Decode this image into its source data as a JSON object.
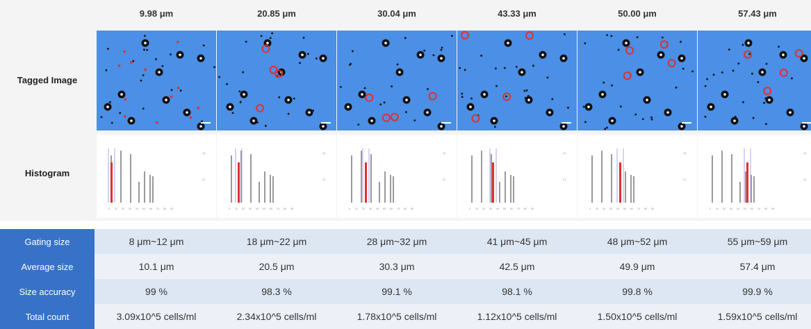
{
  "columns": [
    {
      "header": "9.98 μm",
      "gating": "8 μm~12 μm",
      "average": "10.1 μm",
      "accuracy": "99 %",
      "count": "3.09x10^5 cells/ml"
    },
    {
      "header": "20.85 μm",
      "gating": "18 μm~22 μm",
      "average": "20.5 μm",
      "accuracy": "98.3 %",
      "count": "2.34x10^5 cells/ml"
    },
    {
      "header": "30.04 μm",
      "gating": "28 μm~32 μm",
      "average": "30.3 μm",
      "accuracy": "99.1 %",
      "count": "1.78x10^5 cells/ml"
    },
    {
      "header": "43.33 μm",
      "gating": "41 μm~45 μm",
      "average": "42.5 μm",
      "accuracy": "98.1 %",
      "count": "1.12x10^5 cells/ml"
    },
    {
      "header": "50.00 μm",
      "gating": "48 μm~52 μm",
      "average": "49.9 μm",
      "accuracy": "99.8 %",
      "count": "1.50x10^5 cells/ml"
    },
    {
      "header": "57.43 μm",
      "gating": "55 μm~59 μm",
      "average": "57.4 μm",
      "accuracy": "99.9 %",
      "count": "1.59x10^5 cells/ml"
    }
  ],
  "labels": {
    "tagged_image": "Tagged Image",
    "histogram": "Histogram",
    "gating_size": "Gating size",
    "average_size": "Average size",
    "size_accuracy": "Size accuracy",
    "total_count": "Total count"
  },
  "histogram_axis": {
    "x_ticks": [
      "0",
      "10",
      "20",
      "30",
      "40",
      "50",
      "60",
      "70",
      "80",
      "90"
    ],
    "y_ticks": [
      "43",
      "21"
    ]
  },
  "colors": {
    "header_bg": "#3772c8",
    "row_light": "#dde6f3",
    "row_lighter": "#edf1f7",
    "image_bg": "#4b8fe6",
    "tag_red": "#e03030"
  }
}
